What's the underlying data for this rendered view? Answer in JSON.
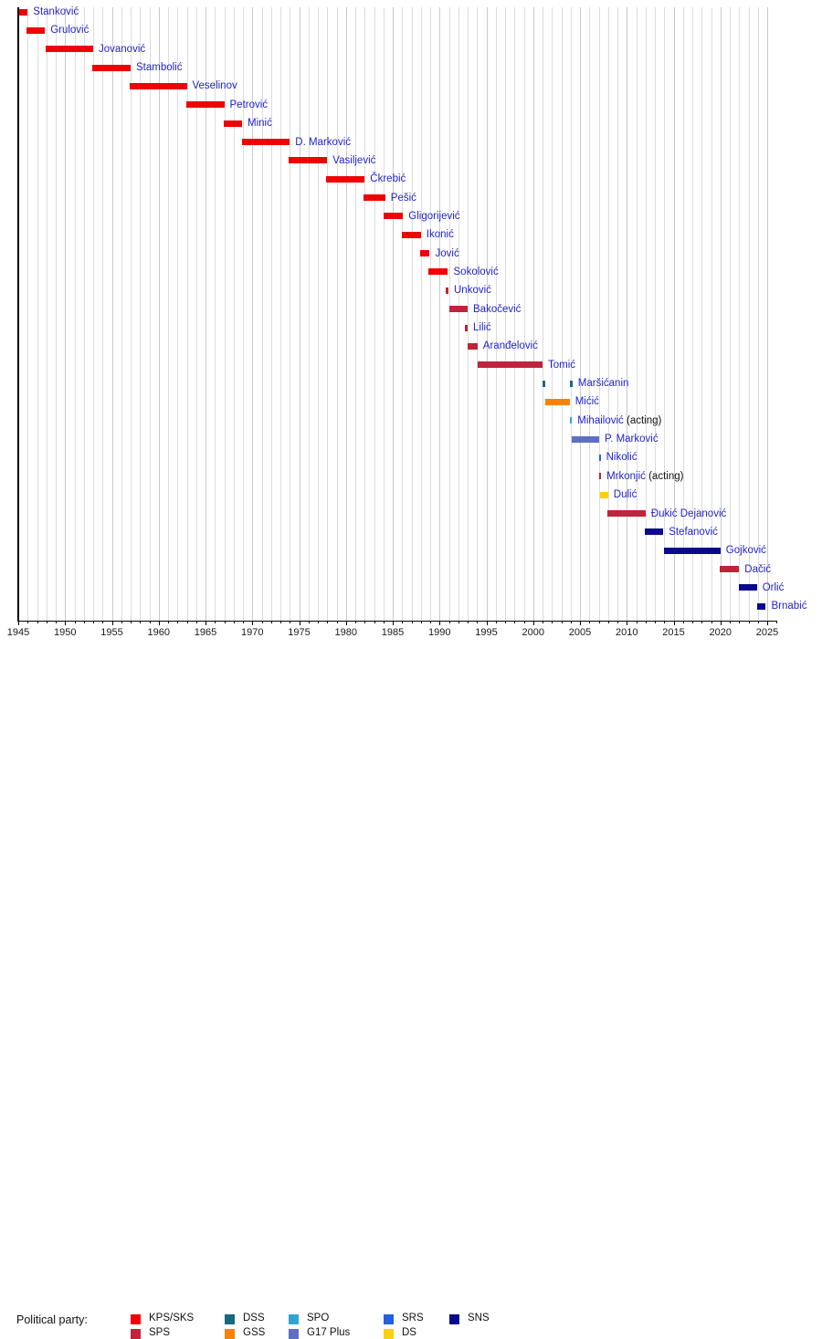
{
  "chart_data": {
    "type": "timeline",
    "description": "Gantt-style timeline of office holders colored by political party",
    "x_axis": {
      "min": 1945,
      "max": 2026,
      "major_tick_interval": 5,
      "minor_tick_interval": 1,
      "tick_labels": [
        "1945",
        "1950",
        "1955",
        "1960",
        "1965",
        "1970",
        "1975",
        "1980",
        "1985",
        "1990",
        "1995",
        "2000",
        "2005",
        "2010",
        "2015",
        "2020",
        "2025"
      ]
    },
    "grid": "yearly vertical gridlines",
    "label_color": "#2222cc",
    "party_colors": {
      "KPS/SKS": "#ee0404",
      "SPS": "#c1223c",
      "DSS": "#17687f",
      "GSS": "#f5820a",
      "SPO": "#2fa6d2",
      "G17 Plus": "#5f6fc4",
      "SRS": "#2360e0",
      "DS": "#fcd00e",
      "SNS": "#0a0a8c"
    },
    "people": [
      {
        "name": "Stanković",
        "party": "KPS/SKS",
        "terms": [
          [
            1945.08,
            1946.0
          ]
        ]
      },
      {
        "name": "Grulović",
        "party": "KPS/SKS",
        "terms": [
          [
            1945.9,
            1947.85
          ]
        ]
      },
      {
        "name": "Jovanović",
        "party": "KPS/SKS",
        "terms": [
          [
            1947.9,
            1953.0
          ]
        ]
      },
      {
        "name": "Stambolić",
        "party": "KPS/SKS",
        "terms": [
          [
            1952.9,
            1957.0
          ]
        ]
      },
      {
        "name": "Veselinov",
        "party": "KPS/SKS",
        "terms": [
          [
            1956.9,
            1963.0
          ]
        ]
      },
      {
        "name": "Petrović",
        "party": "KPS/SKS",
        "terms": [
          [
            1962.9,
            1967.0
          ]
        ]
      },
      {
        "name": "Minić",
        "party": "KPS/SKS",
        "terms": [
          [
            1966.9,
            1968.9
          ]
        ]
      },
      {
        "name": "D. Marković",
        "party": "KPS/SKS",
        "terms": [
          [
            1968.9,
            1974.0
          ]
        ]
      },
      {
        "name": "Vasiljević",
        "party": "KPS/SKS",
        "terms": [
          [
            1973.9,
            1978.0
          ]
        ]
      },
      {
        "name": "Čkrebić",
        "party": "KPS/SKS",
        "terms": [
          [
            1977.9,
            1982.0
          ]
        ]
      },
      {
        "name": "Pešić",
        "party": "KPS/SKS",
        "terms": [
          [
            1981.9,
            1984.2
          ]
        ]
      },
      {
        "name": "Gligorijević",
        "party": "KPS/SKS",
        "terms": [
          [
            1984.0,
            1986.1
          ]
        ]
      },
      {
        "name": "Ikonić",
        "party": "KPS/SKS",
        "terms": [
          [
            1986.0,
            1988.0
          ]
        ]
      },
      {
        "name": "Jović",
        "party": "KPS/SKS",
        "terms": [
          [
            1987.9,
            1988.95
          ]
        ]
      },
      {
        "name": "Sokolović",
        "party": "KPS/SKS",
        "terms": [
          [
            1988.8,
            1990.9
          ]
        ]
      },
      {
        "name": "Unković",
        "party": "SPS",
        "terms": [
          [
            1990.65,
            1990.95
          ]
        ]
      },
      {
        "name": "Bakočević",
        "party": "SPS",
        "terms": [
          [
            1991.0,
            1993.0
          ]
        ]
      },
      {
        "name": "Lilić",
        "party": "SPS",
        "terms": [
          [
            1992.7,
            1993.0
          ]
        ]
      },
      {
        "name": "Aranđelović",
        "party": "SPS",
        "terms": [
          [
            1993.0,
            1994.05
          ]
        ]
      },
      {
        "name": "Tomić",
        "party": "SPS",
        "terms": [
          [
            1994.05,
            2001.0
          ]
        ]
      },
      {
        "name": "Maršićanin",
        "party": "DSS",
        "terms": [
          [
            2001.0,
            2001.25
          ],
          [
            2003.95,
            2004.2
          ]
        ]
      },
      {
        "name": "Mićić",
        "party": "GSS",
        "terms": [
          [
            2001.3,
            2003.9
          ]
        ]
      },
      {
        "name": "Mihailović",
        "party": "SPO",
        "suffix": " (acting)",
        "terms": [
          [
            2003.95,
            2004.15
          ]
        ]
      },
      {
        "name": "P. Marković",
        "party": "G17 Plus",
        "terms": [
          [
            2004.15,
            2007.05
          ]
        ]
      },
      {
        "name": "Nikolić",
        "party": "SRS",
        "terms": [
          [
            2007.0,
            2007.2
          ]
        ]
      },
      {
        "name": "Mrkonjić",
        "party": "SPS",
        "suffix": " (acting)",
        "terms": [
          [
            2007.05,
            2007.25
          ]
        ]
      },
      {
        "name": "Dulić",
        "party": "DS",
        "terms": [
          [
            2007.1,
            2008.0
          ]
        ]
      },
      {
        "name": "Đukić Dejanović",
        "party": "SPS",
        "terms": [
          [
            2007.95,
            2012.0
          ]
        ]
      },
      {
        "name": "Stefanović",
        "party": "SNS",
        "terms": [
          [
            2011.95,
            2013.9
          ]
        ]
      },
      {
        "name": "Gojković",
        "party": "SNS",
        "terms": [
          [
            2014.0,
            2020.0
          ]
        ]
      },
      {
        "name": "Dačić",
        "party": "SPS",
        "terms": [
          [
            2019.95,
            2022.0
          ]
        ]
      },
      {
        "name": "Orlić",
        "party": "SNS",
        "terms": [
          [
            2021.95,
            2023.9
          ]
        ]
      },
      {
        "name": "Brnabić",
        "party": "SNS",
        "terms": [
          [
            2023.95,
            2024.85
          ]
        ]
      }
    ],
    "legend": {
      "title": "Political party:",
      "rows": [
        [
          "KPS/SKS",
          "DSS",
          "SPO",
          "SRS",
          "SNS"
        ],
        [
          "SPS",
          "GSS",
          "G17 Plus",
          "DS"
        ]
      ],
      "position": "bottom"
    }
  }
}
